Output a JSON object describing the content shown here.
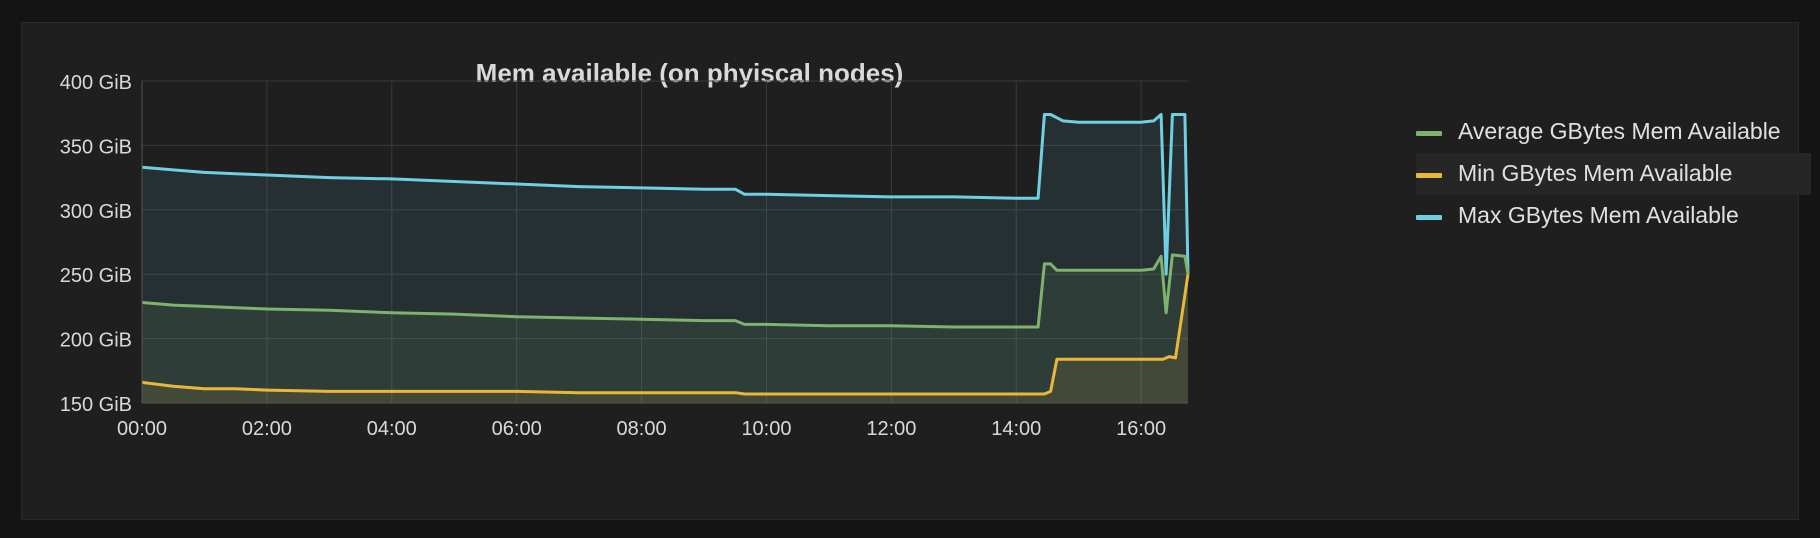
{
  "panel": {
    "title": "Mem available (on phyiscal nodes)"
  },
  "legend": [
    {
      "label": "Average GBytes Mem Available",
      "color": "#7eb26d"
    },
    {
      "label": "Min GBytes Mem Available",
      "color": "#eab839"
    },
    {
      "label": "Max GBytes Mem Available",
      "color": "#6ed0e0"
    }
  ],
  "chart_data": {
    "type": "line",
    "title": "Mem available (on phyiscal nodes)",
    "xlabel": "",
    "ylabel": "",
    "x_unit": "hours since 00:00",
    "xlim": [
      0,
      16.75
    ],
    "ylim": [
      150,
      400
    ],
    "y_unit": "GiB",
    "x_ticks": [
      "00:00",
      "02:00",
      "04:00",
      "06:00",
      "08:00",
      "10:00",
      "12:00",
      "14:00",
      "16:00"
    ],
    "y_ticks": [
      "150 GiB",
      "200 GiB",
      "250 GiB",
      "300 GiB",
      "350 GiB",
      "400 GiB"
    ],
    "grid": true,
    "legend_position": "right",
    "series": [
      {
        "name": "Max GBytes Mem Available",
        "color": "#6ed0e0",
        "fill": true,
        "x": [
          0,
          0.5,
          1,
          1.5,
          2,
          3,
          4,
          5,
          6,
          7,
          8,
          9,
          9.5,
          9.65,
          10,
          11,
          12,
          13,
          14,
          14.35,
          14.45,
          14.55,
          14.75,
          15,
          15.5,
          16,
          16.2,
          16.32,
          16.4,
          16.5,
          16.7,
          16.75
        ],
        "y": [
          333,
          331,
          329,
          328,
          327,
          325,
          324,
          322,
          320,
          318,
          317,
          316,
          316,
          312,
          312,
          311,
          310,
          310,
          309,
          309,
          374,
          374,
          369,
          368,
          368,
          368,
          369,
          374,
          250,
          374,
          374,
          250
        ]
      },
      {
        "name": "Average GBytes Mem Available",
        "color": "#7eb26d",
        "fill": true,
        "x": [
          0,
          0.5,
          1,
          1.5,
          2,
          3,
          4,
          5,
          6,
          7,
          8,
          9,
          9.5,
          9.65,
          10,
          11,
          12,
          13,
          14,
          14.35,
          14.45,
          14.55,
          14.65,
          15,
          15.5,
          16,
          16.2,
          16.32,
          16.4,
          16.5,
          16.7,
          16.75
        ],
        "y": [
          228,
          226,
          225,
          224,
          223,
          222,
          220,
          219,
          217,
          216,
          215,
          214,
          214,
          211,
          211,
          210,
          210,
          209,
          209,
          209,
          258,
          258,
          253,
          253,
          253,
          253,
          254,
          264,
          220,
          265,
          264,
          250
        ]
      },
      {
        "name": "Min GBytes Mem Available",
        "color": "#eab839",
        "fill": true,
        "x": [
          0,
          0.5,
          1,
          1.5,
          2,
          3,
          4,
          5,
          6,
          7,
          8,
          9,
          9.5,
          9.65,
          10,
          11,
          12,
          13,
          14,
          14.45,
          14.55,
          14.65,
          14.75,
          15,
          15.5,
          16,
          16.2,
          16.35,
          16.45,
          16.55,
          16.75
        ],
        "y": [
          166,
          163,
          161,
          161,
          160,
          159,
          159,
          159,
          159,
          158,
          158,
          158,
          158,
          157,
          157,
          157,
          157,
          157,
          157,
          157,
          159,
          184,
          184,
          184,
          184,
          184,
          184,
          184,
          186,
          185,
          250
        ]
      }
    ]
  }
}
